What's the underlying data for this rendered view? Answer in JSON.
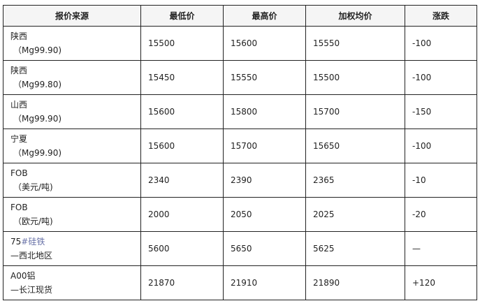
{
  "headers": [
    "报价来源",
    "最低价",
    "最高价",
    "加权均价",
    "涨跌"
  ],
  "rows": [
    {
      "source_line1": "陕西",
      "source_line2": "（Mg99.90)",
      "low": "15500",
      "high": "15600",
      "avg": "15550",
      "change": "-100"
    },
    {
      "source_line1": "陕西",
      "source_line2": "（Mg99.80)",
      "low": "15450",
      "high": "15550",
      "avg": "15500",
      "change": "-100"
    },
    {
      "source_line1": "山西",
      "source_line2": "（Mg99.90)",
      "low": "15600",
      "high": "15800",
      "avg": "15700",
      "change": "-150"
    },
    {
      "source_line1": "宁夏",
      "source_line2": "（Mg99.90)",
      "low": "15600",
      "high": "15700",
      "avg": "15650",
      "change": "-100"
    },
    {
      "source_line1": "FOB",
      "source_line2": "（美元/吨)",
      "low": "2340",
      "high": "2390",
      "avg": "2365",
      "change": "-10"
    },
    {
      "source_line1": "FOB",
      "source_line2": "（欧元/吨)",
      "low": "2000",
      "high": "2050",
      "avg": "2025",
      "change": "-20"
    },
    {
      "source_line1": "75",
      "source_line1_accent": "#硅铁",
      "source_line2": "—西北地区",
      "low": "5600",
      "high": "5650",
      "avg": "5625",
      "change": "—"
    },
    {
      "source_line1": "A00铝",
      "source_line2": "—长江现货",
      "low": "21870",
      "high": "21910",
      "avg": "21890",
      "change": "+120"
    }
  ],
  "colors": {
    "border": "#222222",
    "header_bg": "#f5f5f5",
    "accent_text": "#6a73a8"
  }
}
